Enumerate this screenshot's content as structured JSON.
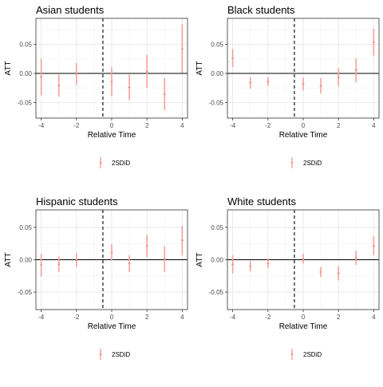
{
  "chart_data": [
    {
      "type": "errorbar",
      "title": "Asian students",
      "xlabel": "Relative Time",
      "ylabel": "ATT",
      "xlim": [
        -4.3,
        4.3
      ],
      "ylim": [
        -0.077,
        0.095
      ],
      "x_ticks": [
        -4,
        -2,
        0,
        2,
        4
      ],
      "x_tick_labels": [
        "-4",
        "-2",
        "0",
        "2",
        "4"
      ],
      "y_ticks": [
        -0.05,
        0,
        0.05
      ],
      "y_tick_labels": [
        "-0.05",
        "0.00",
        "0.05"
      ],
      "treatment_line_x": -0.5,
      "zero_line_y": 0,
      "grid": true,
      "legend": {
        "position": "bottom",
        "entries": [
          "2SDiD"
        ]
      },
      "series": [
        {
          "name": "2SDiD",
          "color": "#f4a199",
          "points": [
            {
              "x": -4,
              "y": -0.006,
              "low": -0.038,
              "high": 0.026
            },
            {
              "x": -3,
              "y": -0.021,
              "low": -0.04,
              "high": -0.002
            },
            {
              "x": -2,
              "y": -0.001,
              "low": -0.02,
              "high": 0.018
            },
            {
              "x": 0,
              "y": -0.014,
              "low": -0.039,
              "high": 0.011
            },
            {
              "x": 1,
              "y": -0.024,
              "low": -0.046,
              "high": -0.002
            },
            {
              "x": 2,
              "y": 0.003,
              "low": -0.025,
              "high": 0.032
            },
            {
              "x": 3,
              "y": -0.036,
              "low": -0.063,
              "high": -0.008
            },
            {
              "x": 4,
              "y": 0.042,
              "low": 0.001,
              "high": 0.085
            }
          ]
        }
      ]
    },
    {
      "type": "errorbar",
      "title": "Black students",
      "xlabel": "Relative Time",
      "ylabel": "ATT",
      "xlim": [
        -4.3,
        4.3
      ],
      "ylim": [
        -0.077,
        0.095
      ],
      "x_ticks": [
        -4,
        -2,
        0,
        2,
        4
      ],
      "x_tick_labels": [
        "-4",
        "-2",
        "0",
        "2",
        "4"
      ],
      "y_ticks": [
        -0.05,
        0,
        0.05
      ],
      "y_tick_labels": [
        "-0.05",
        "0.00",
        "0.05"
      ],
      "treatment_line_x": -0.5,
      "zero_line_y": 0,
      "grid": true,
      "legend": {
        "position": "bottom",
        "entries": [
          "2SDiD"
        ]
      },
      "series": [
        {
          "name": "2SDiD",
          "color": "#f4a199",
          "points": [
            {
              "x": -4,
              "y": 0.026,
              "low": 0.011,
              "high": 0.042
            },
            {
              "x": -3,
              "y": -0.016,
              "low": -0.026,
              "high": -0.006
            },
            {
              "x": -2,
              "y": -0.014,
              "low": -0.022,
              "high": -0.006
            },
            {
              "x": 0,
              "y": -0.018,
              "low": -0.029,
              "high": -0.007
            },
            {
              "x": 1,
              "y": -0.022,
              "low": -0.035,
              "high": -0.008
            },
            {
              "x": 2,
              "y": -0.007,
              "low": -0.022,
              "high": 0.009
            },
            {
              "x": 3,
              "y": 0.006,
              "low": -0.015,
              "high": 0.026
            },
            {
              "x": 4,
              "y": 0.054,
              "low": 0.031,
              "high": 0.077
            }
          ]
        }
      ]
    },
    {
      "type": "errorbar",
      "title": "Hispanic students",
      "xlabel": "Relative Time",
      "ylabel": "ATT",
      "xlim": [
        -4.3,
        4.3
      ],
      "ylim": [
        -0.077,
        0.077
      ],
      "x_ticks": [
        -4,
        -2,
        0,
        2,
        4
      ],
      "x_tick_labels": [
        "-4",
        "-2",
        "0",
        "2",
        "4"
      ],
      "y_ticks": [
        -0.05,
        0,
        0.05
      ],
      "y_tick_labels": [
        "-0.05",
        "0.00",
        "0.05"
      ],
      "treatment_line_x": -0.5,
      "zero_line_y": 0,
      "grid": true,
      "legend": {
        "position": "bottom",
        "entries": [
          "2SDiD"
        ]
      },
      "series": [
        {
          "name": "2SDiD",
          "color": "#f4a199",
          "points": [
            {
              "x": -4,
              "y": -0.008,
              "low": -0.026,
              "high": 0.009
            },
            {
              "x": -3,
              "y": -0.007,
              "low": -0.019,
              "high": 0.005
            },
            {
              "x": -2,
              "y": -0.001,
              "low": -0.011,
              "high": 0.01
            },
            {
              "x": 0,
              "y": 0.011,
              "low": -0.001,
              "high": 0.024
            },
            {
              "x": 1,
              "y": -0.006,
              "low": -0.019,
              "high": 0.007
            },
            {
              "x": 2,
              "y": 0.021,
              "low": 0.004,
              "high": 0.038
            },
            {
              "x": 3,
              "y": 0.001,
              "low": -0.019,
              "high": 0.021
            },
            {
              "x": 4,
              "y": 0.03,
              "low": 0.007,
              "high": 0.052
            }
          ]
        }
      ]
    },
    {
      "type": "errorbar",
      "title": "White students",
      "xlabel": "Relative Time",
      "ylabel": "ATT",
      "xlim": [
        -4.3,
        4.3
      ],
      "ylim": [
        -0.077,
        0.077
      ],
      "x_ticks": [
        -4,
        -2,
        0,
        2,
        4
      ],
      "x_tick_labels": [
        "-4",
        "-2",
        "0",
        "2",
        "4"
      ],
      "y_ticks": [
        -0.05,
        0,
        0.05
      ],
      "y_tick_labels": [
        "-0.05",
        "0.00",
        "0.05"
      ],
      "treatment_line_x": -0.5,
      "zero_line_y": 0,
      "grid": true,
      "legend": {
        "position": "bottom",
        "entries": [
          "2SDiD"
        ]
      },
      "series": [
        {
          "name": "2SDiD",
          "color": "#f4a199",
          "points": [
            {
              "x": -4,
              "y": -0.007,
              "low": -0.021,
              "high": 0.007
            },
            {
              "x": -3,
              "y": -0.01,
              "low": -0.018,
              "high": -0.002
            },
            {
              "x": -2,
              "y": -0.006,
              "low": -0.013,
              "high": 0.002
            },
            {
              "x": 0,
              "y": 0.001,
              "low": -0.006,
              "high": 0.009
            },
            {
              "x": 1,
              "y": -0.019,
              "low": -0.027,
              "high": -0.011
            },
            {
              "x": 2,
              "y": -0.021,
              "low": -0.032,
              "high": -0.01
            },
            {
              "x": 3,
              "y": 0.003,
              "low": -0.008,
              "high": 0.014
            },
            {
              "x": 4,
              "y": 0.021,
              "low": 0.007,
              "high": 0.036
            }
          ]
        }
      ]
    }
  ]
}
